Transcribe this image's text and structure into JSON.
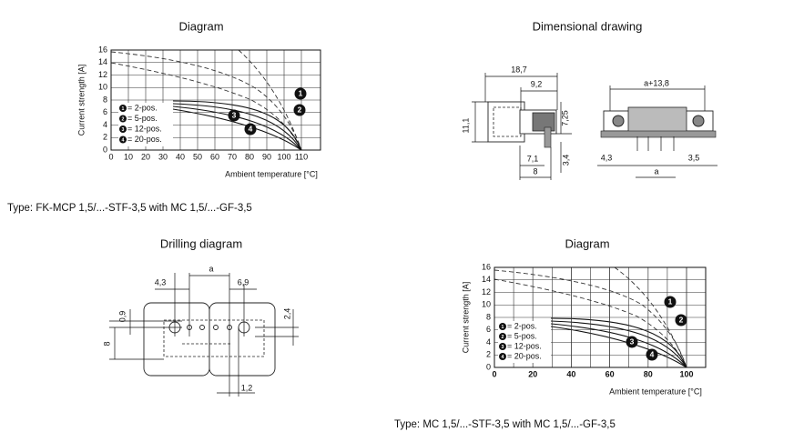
{
  "diagram_1": {
    "title": "Diagram",
    "y_label": "Current strength [A]",
    "x_label": "Ambient temperature [°C]",
    "yticks": [
      0,
      2,
      4,
      6,
      8,
      10,
      12,
      14,
      16
    ],
    "xticks": [
      0,
      10,
      20,
      30,
      40,
      50,
      60,
      70,
      80,
      90,
      100,
      110
    ],
    "legend": [
      {
        "marker": "1",
        "label": "= 2-pos."
      },
      {
        "marker": "2",
        "label": "= 5-pos."
      },
      {
        "marker": "3",
        "label": "= 12-pos."
      },
      {
        "marker": "4",
        "label": "= 20-pos."
      }
    ]
  },
  "dimensional_drawing": {
    "title": "Dimensional drawing",
    "dimensions": [
      "18,7",
      "9,2",
      "11,1",
      "7,25",
      "7,1",
      "8",
      "3,4",
      "a+13,8",
      "4,3",
      "3,5",
      "a"
    ]
  },
  "type_1": "Type: FK-MCP 1,5/...-STF-3,5 with MC 1,5/...-GF-3,5",
  "drilling_diagram": {
    "title": "Drilling diagram",
    "dimensions": [
      "4,3",
      "a",
      "6,9",
      "0,9",
      "8",
      "2,4",
      "1,2"
    ]
  },
  "diagram_2": {
    "title": "Diagram",
    "y_label": "Current strength [A]",
    "x_label": "Ambient temperature [°C]",
    "yticks": [
      0,
      2,
      4,
      6,
      8,
      10,
      12,
      14,
      16
    ],
    "xticks": [
      0,
      20,
      40,
      60,
      80,
      100
    ],
    "legend": [
      {
        "marker": "1",
        "label": "= 2-pos."
      },
      {
        "marker": "2",
        "label": "= 5-pos."
      },
      {
        "marker": "3",
        "label": "= 12-pos."
      },
      {
        "marker": "4",
        "label": "= 20-pos."
      }
    ]
  },
  "type_2": "Type: MC 1,5/...-STF-3,5 with MC 1,5/...-GF-3,5"
}
